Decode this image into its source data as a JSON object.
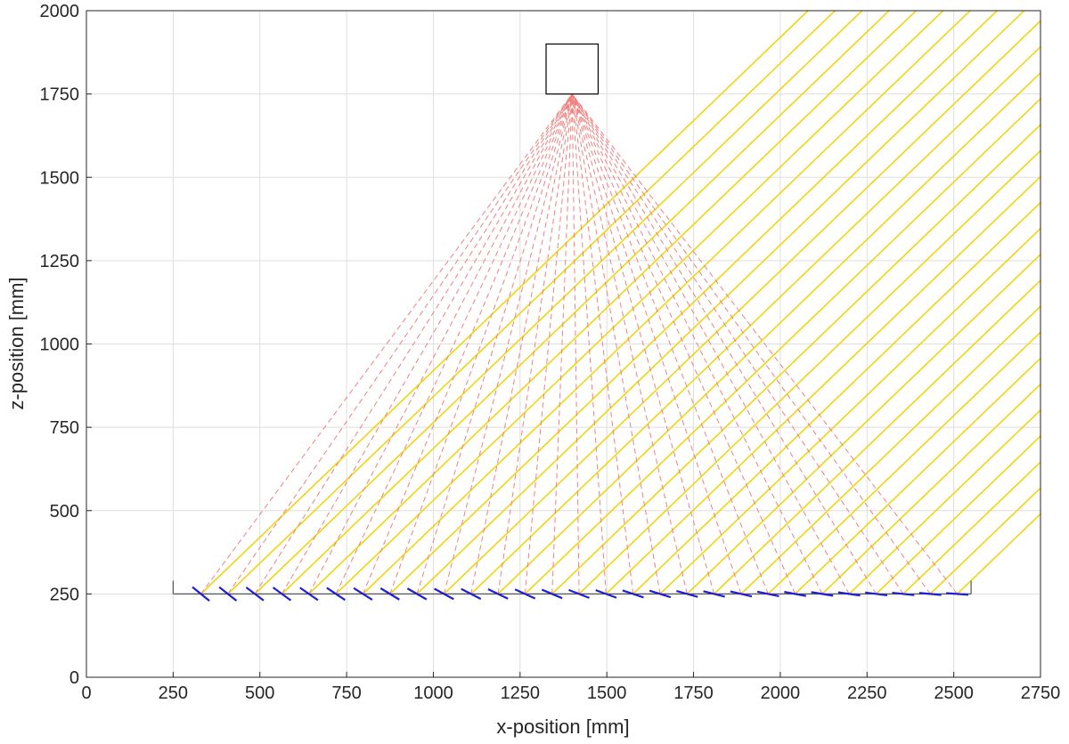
{
  "chart_data": {
    "type": "line",
    "title": "",
    "xlabel": "x-position [mm]",
    "ylabel": "z-position [mm]",
    "xlim": [
      0,
      2750
    ],
    "ylim": [
      0,
      2000
    ],
    "xticks": [
      0,
      250,
      500,
      750,
      1000,
      1250,
      1500,
      1750,
      2000,
      2250,
      2500,
      2750
    ],
    "yticks": [
      0,
      250,
      500,
      750,
      1000,
      1250,
      1500,
      1750,
      2000
    ],
    "grid": true,
    "legend": "none",
    "receiver": {
      "shape": "square",
      "x_range": [
        1325,
        1475
      ],
      "z_range": [
        1750,
        1900
      ],
      "color": "#000000"
    },
    "mirror_field": {
      "base_line": {
        "x": [
          250,
          2550
        ],
        "z": 250,
        "color": "#555555"
      },
      "end_posts": [
        {
          "x": 250,
          "z": [
            250,
            290
          ]
        },
        {
          "x": 2550,
          "z": [
            250,
            290
          ]
        }
      ],
      "mirror_count": 29,
      "x_start": 330,
      "x_end": 2510,
      "z": 250,
      "half_length_mm": 32,
      "color": "#1f1fd6"
    },
    "incident_rays": {
      "color": "#f2d40f",
      "style": "solid",
      "direction": "parallel, slope 45 degrees toward upper-right",
      "slope": 1.0,
      "origin_x_start": 330,
      "origin_x_end": 2510,
      "count": 29,
      "z_origin": 250
    },
    "reflected_rays": {
      "color": "#f08080",
      "style": "dashed",
      "target": [
        1400,
        1750
      ],
      "count": 29
    }
  }
}
